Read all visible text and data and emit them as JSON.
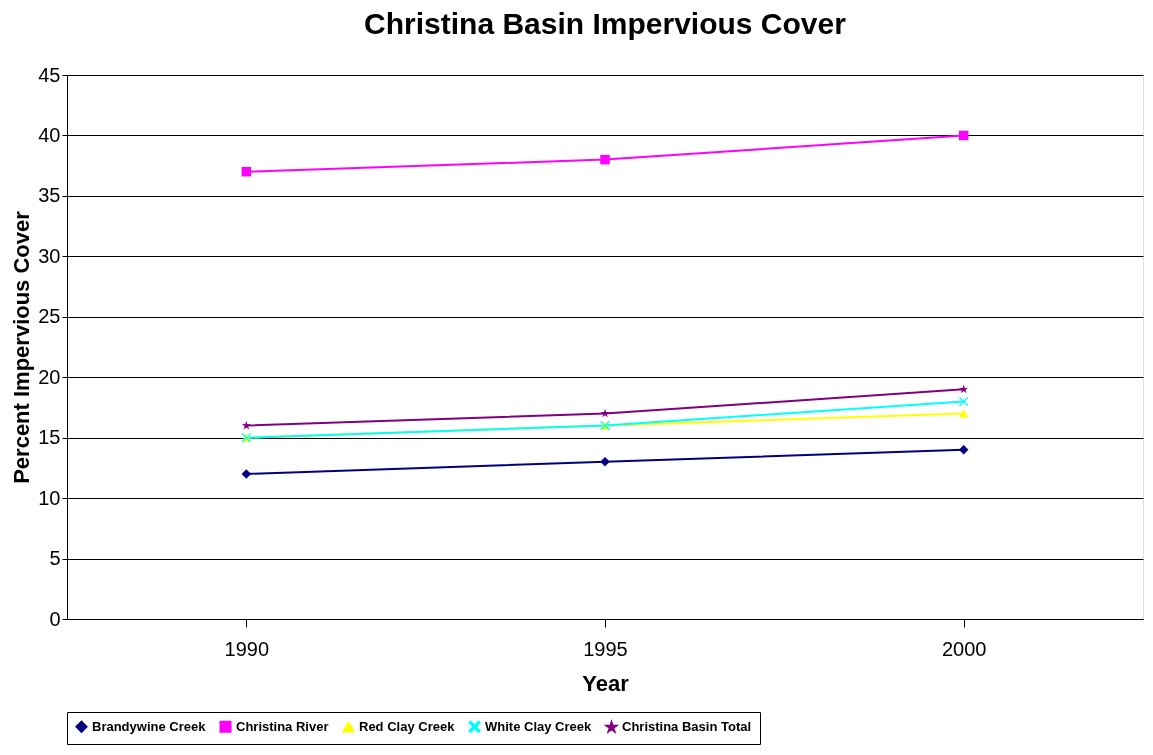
{
  "chart_data": {
    "type": "line",
    "title": "Christina Basin Impervious Cover",
    "xlabel": "Year",
    "ylabel": "Percent Impervious Cover",
    "categories": [
      "1990",
      "1995",
      "2000"
    ],
    "series": [
      {
        "name": "Brandywine Creek",
        "color": "#000080",
        "marker": "diamond",
        "values": [
          12,
          13,
          14
        ]
      },
      {
        "name": "Christina River",
        "color": "#ff00ff",
        "marker": "square",
        "values": [
          37,
          38,
          40
        ]
      },
      {
        "name": "Red Clay Creek",
        "color": "#ffff00",
        "marker": "triangle",
        "values": [
          15,
          16,
          17
        ]
      },
      {
        "name": "White Clay Creek",
        "color": "#00ffff",
        "marker": "cross",
        "values": [
          15,
          16,
          18
        ]
      },
      {
        "name": "Christina Basin Total",
        "color": "#800080",
        "marker": "star",
        "values": [
          16,
          17,
          19
        ]
      }
    ],
    "ylim": [
      0,
      45
    ],
    "yticks": [
      0,
      5,
      10,
      15,
      20,
      25,
      30,
      35,
      40,
      45
    ],
    "grid": "y",
    "legend": "bottom",
    "line_style": "solid"
  }
}
